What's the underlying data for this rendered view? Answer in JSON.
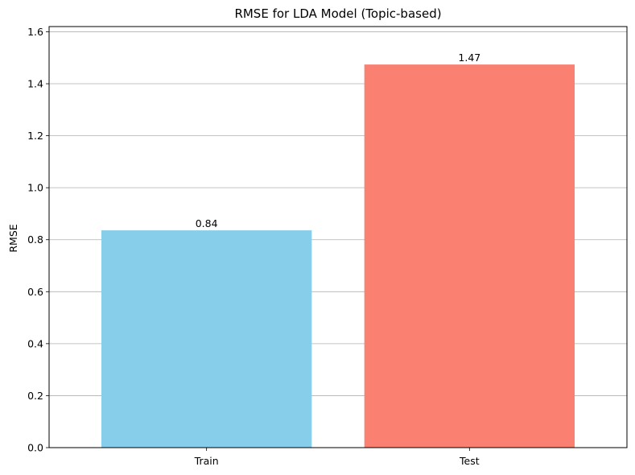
{
  "chart_data": {
    "type": "bar",
    "title": "RMSE for LDA Model (Topic-based)",
    "xlabel": "",
    "ylabel": "RMSE",
    "categories": [
      "Train",
      "Test"
    ],
    "values": [
      0.836,
      1.474
    ],
    "value_labels": [
      "0.84",
      "1.47"
    ],
    "colors": [
      "#87ceeb",
      "#fa8072"
    ],
    "ylim": [
      0,
      1.62
    ],
    "yticks": [
      0.0,
      0.2,
      0.4,
      0.6,
      0.8,
      1.0,
      1.2,
      1.4,
      1.6
    ],
    "ytick_labels": [
      "0.0",
      "0.2",
      "0.4",
      "0.6",
      "0.8",
      "1.0",
      "1.2",
      "1.4",
      "1.6"
    ],
    "grid": "y-major",
    "grid_color": "#b0b0b0"
  }
}
